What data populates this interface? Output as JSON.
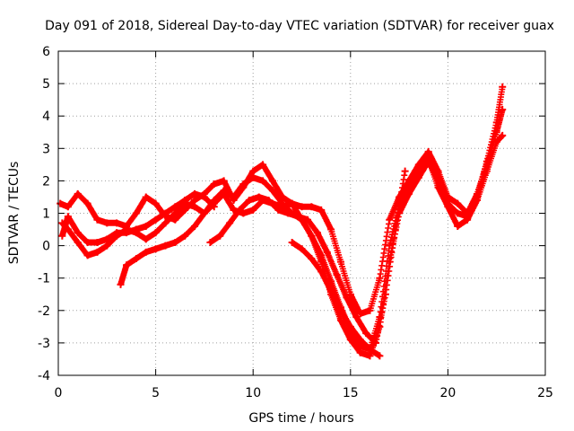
{
  "chart_data": {
    "type": "scatter",
    "title": "Day 091 of 2018, Sidereal Day-to-day VTEC variation (SDTVAR) for receiver guax",
    "xlabel": "GPS time / hours",
    "ylabel": "SDTVAR / TECUs",
    "xlim": [
      0,
      25
    ],
    "ylim": [
      -4,
      6
    ],
    "xticks": [
      "0",
      "5",
      "10",
      "15",
      "20",
      "25"
    ],
    "yticks": [
      "-4",
      "-3",
      "-2",
      "-1",
      "0",
      "1",
      "2",
      "3",
      "4",
      "5",
      "6"
    ],
    "grid": true,
    "legend": "none",
    "marker": "plus",
    "color": "#ff0000",
    "series": [
      {
        "x": [
          0.1,
          0.5,
          1.0,
          1.5,
          2.0,
          2.5,
          3.0,
          3.5,
          4.0,
          4.5,
          5.0,
          5.5,
          6.0,
          6.5,
          7.0,
          7.5,
          8.0,
          8.5,
          9.0,
          9.5,
          10.0,
          10.5,
          11.0,
          11.5,
          12.0,
          12.5,
          13.0,
          13.5,
          14.0,
          14.5,
          15.0,
          15.5,
          16.0,
          16.5,
          17.0,
          17.5,
          18.0,
          18.5,
          19.0,
          19.5,
          20.0,
          20.5,
          21.0,
          21.5,
          22.0,
          22.5,
          22.8
        ],
        "y": [
          1.3,
          1.2,
          1.6,
          1.3,
          0.8,
          0.7,
          0.7,
          0.6,
          1.0,
          1.5,
          1.3,
          0.9,
          0.8,
          1.1,
          1.4,
          1.6,
          1.9,
          2.0,
          1.4,
          1.8,
          2.3,
          2.5,
          2.0,
          1.5,
          1.3,
          1.2,
          1.2,
          1.1,
          0.5,
          -0.5,
          -1.5,
          -2.1,
          -2.0,
          -1.0,
          0.8,
          1.5,
          2.0,
          2.5,
          2.9,
          2.3,
          1.5,
          1.3,
          1.0,
          1.6,
          2.5,
          3.5,
          4.2
        ]
      },
      {
        "x": [
          0.2,
          0.5,
          1.0,
          1.5,
          2.0,
          2.5,
          3.0,
          3.5,
          4.0,
          4.5,
          5.0,
          5.5,
          6.0,
          6.5,
          7.0,
          7.5,
          8.0,
          8.5,
          9.0,
          9.5,
          10.0,
          10.5,
          11.0,
          11.5,
          12.0,
          12.5,
          13.0,
          13.5,
          14.0,
          14.5,
          15.0,
          15.5,
          16.0,
          16.5,
          17.0,
          17.5,
          18.0,
          18.5,
          19.0,
          19.5,
          20.0,
          20.5,
          21.0,
          21.5,
          22.0,
          22.5,
          22.8
        ],
        "y": [
          0.7,
          0.5,
          0.1,
          -0.3,
          -0.2,
          0.0,
          0.3,
          0.5,
          0.4,
          0.2,
          0.4,
          0.7,
          1.0,
          1.3,
          1.2,
          1.0,
          1.3,
          1.6,
          1.1,
          1.0,
          1.1,
          1.4,
          1.3,
          1.2,
          1.3,
          0.8,
          0.3,
          -0.5,
          -1.5,
          -2.3,
          -2.9,
          -3.3,
          -3.4,
          -2.5,
          -0.5,
          1.0,
          1.6,
          2.1,
          2.6,
          2.0,
          1.3,
          1.0,
          0.9,
          1.5,
          2.6,
          3.8,
          4.9
        ]
      },
      {
        "x": [
          3.2,
          3.5,
          4.0,
          4.5,
          5.0,
          5.5,
          6.0,
          6.5,
          7.0,
          7.5,
          8.0,
          8.5,
          9.0,
          9.5,
          10.0,
          10.5,
          11.0,
          11.5,
          12.0,
          12.5,
          13.0,
          13.5,
          14.0,
          14.5,
          15.0,
          15.5,
          16.0,
          16.5,
          17.0,
          17.5,
          18.0,
          18.5,
          19.0,
          19.5,
          20.0,
          20.5,
          21.0,
          21.5,
          22.0,
          22.5,
          22.8
        ],
        "y": [
          -1.2,
          -0.6,
          -0.4,
          -0.2,
          -0.1,
          0.0,
          0.1,
          0.3,
          0.6,
          1.0,
          1.4,
          1.7,
          1.5,
          1.9,
          2.1,
          2.0,
          1.7,
          1.3,
          1.0,
          0.8,
          0.3,
          -0.3,
          -1.1,
          -1.9,
          -2.6,
          -3.1,
          -3.2,
          -2.2,
          0.0,
          1.2,
          1.8,
          2.4,
          2.7,
          1.8,
          1.2,
          0.6,
          0.8,
          1.4,
          2.3,
          3.2,
          3.4
        ]
      },
      {
        "x": [
          0.2,
          0.5,
          1.0,
          1.5,
          2.0,
          2.5,
          3.0,
          3.5,
          4.0,
          4.5,
          5.0,
          5.5,
          6.0,
          6.5,
          7.0,
          7.5,
          8.0
        ],
        "y": [
          0.3,
          0.9,
          0.4,
          0.1,
          0.1,
          0.2,
          0.4,
          0.4,
          0.5,
          0.6,
          0.8,
          1.0,
          1.2,
          1.4,
          1.6,
          1.5,
          1.2
        ]
      },
      {
        "x": [
          12.0,
          12.5,
          13.0,
          13.5,
          14.0,
          14.5,
          15.0,
          15.5,
          16.0,
          16.5
        ],
        "y": [
          0.1,
          -0.1,
          -0.4,
          -0.8,
          -1.4,
          -2.0,
          -2.5,
          -2.9,
          -3.2,
          -3.4
        ]
      },
      {
        "x": [
          7.8,
          8.3,
          8.8,
          9.3,
          9.8,
          10.3,
          10.8,
          11.3,
          11.8,
          12.3,
          12.8,
          13.3,
          13.8,
          14.3,
          14.8,
          15.3,
          15.8,
          16.3,
          16.8,
          17.3,
          17.8
        ],
        "y": [
          0.1,
          0.3,
          0.7,
          1.1,
          1.4,
          1.5,
          1.4,
          1.1,
          1.0,
          0.9,
          0.8,
          0.4,
          -0.2,
          -0.9,
          -1.6,
          -2.2,
          -2.7,
          -3.0,
          -1.5,
          0.5,
          2.3
        ]
      }
    ]
  }
}
